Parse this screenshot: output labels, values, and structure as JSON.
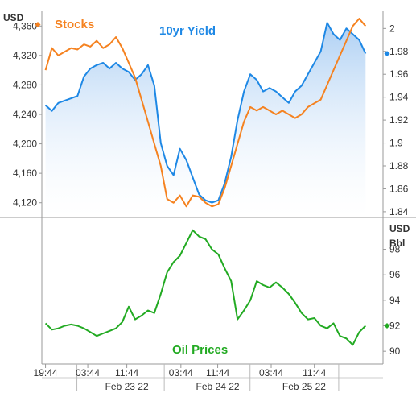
{
  "chart_data": [
    {
      "type": "line",
      "panel": "top",
      "left_axis": {
        "unit": "USD",
        "range": [
          4100,
          4380
        ],
        "ticks": [
          "4,120",
          "4,160",
          "4,200",
          "4,240",
          "4,280",
          "4,320",
          "4,360"
        ],
        "tick_values": [
          4120,
          4160,
          4200,
          4240,
          4280,
          4320,
          4360
        ]
      },
      "right_axis": {
        "range": [
          1.835,
          2.015
        ],
        "ticks": [
          "1.84",
          "1.86",
          "1.88",
          "1.9",
          "1.92",
          "1.94",
          "1.96",
          "1.98",
          "2"
        ],
        "tick_values": [
          1.84,
          1.86,
          1.88,
          1.9,
          1.92,
          1.94,
          1.96,
          1.98,
          2
        ]
      },
      "series": [
        {
          "name": "Stocks",
          "axis": "left",
          "color": "#f58220",
          "current_value": 4362,
          "x": [
            0,
            2,
            4,
            6,
            8,
            10,
            12,
            14,
            16,
            18,
            20,
            22,
            24,
            26,
            28,
            30,
            32,
            34,
            36,
            38,
            40,
            42,
            44,
            46,
            48,
            50,
            52,
            54,
            56,
            58,
            60,
            62,
            64,
            66,
            68,
            70,
            72,
            74,
            76,
            78,
            80,
            82,
            84,
            86,
            88,
            90,
            92,
            94,
            96,
            98,
            100
          ],
          "values": [
            4300,
            4330,
            4320,
            4325,
            4330,
            4328,
            4335,
            4332,
            4340,
            4330,
            4335,
            4345,
            4330,
            4310,
            4290,
            4260,
            4230,
            4200,
            4170,
            4125,
            4120,
            4130,
            4115,
            4130,
            4128,
            4120,
            4115,
            4118,
            4140,
            4170,
            4200,
            4230,
            4250,
            4245,
            4250,
            4245,
            4240,
            4245,
            4240,
            4235,
            4240,
            4250,
            4255,
            4260,
            4280,
            4300,
            4320,
            4340,
            4360,
            4370,
            4360
          ]
        },
        {
          "name": "10yr Yield",
          "axis": "right",
          "color": "#1e88e5",
          "area": true,
          "current_value": 1.978,
          "x": [
            0,
            2,
            4,
            6,
            8,
            10,
            12,
            14,
            16,
            18,
            20,
            22,
            24,
            26,
            28,
            30,
            32,
            34,
            36,
            38,
            40,
            42,
            44,
            46,
            48,
            50,
            52,
            54,
            56,
            58,
            60,
            62,
            64,
            66,
            68,
            70,
            72,
            74,
            76,
            78,
            80,
            82,
            84,
            86,
            88,
            90,
            92,
            94,
            96,
            98,
            100
          ],
          "values": [
            1.933,
            1.928,
            1.935,
            1.937,
            1.939,
            1.941,
            1.958,
            1.965,
            1.968,
            1.97,
            1.965,
            1.97,
            1.965,
            1.962,
            1.955,
            1.96,
            1.968,
            1.95,
            1.9,
            1.88,
            1.872,
            1.895,
            1.885,
            1.87,
            1.855,
            1.85,
            1.848,
            1.85,
            1.865,
            1.888,
            1.92,
            1.945,
            1.96,
            1.955,
            1.945,
            1.948,
            1.945,
            1.94,
            1.935,
            1.945,
            1.95,
            1.96,
            1.97,
            1.98,
            2.005,
            1.995,
            1.99,
            2.0,
            1.995,
            1.99,
            1.978
          ]
        }
      ]
    },
    {
      "type": "line",
      "panel": "bottom",
      "unit": "USD\nBbl",
      "unit_lines": [
        "USD",
        "Bbl"
      ],
      "right_axis": {
        "range": [
          89,
          100.5
        ],
        "ticks": [
          "90",
          "92",
          "94",
          "96",
          "98"
        ],
        "tick_values": [
          90,
          92,
          94,
          96,
          98
        ]
      },
      "series": [
        {
          "name": "Oil Prices",
          "color": "#22aa22",
          "current_value": 92,
          "x": [
            0,
            2,
            4,
            6,
            8,
            10,
            12,
            14,
            16,
            18,
            20,
            22,
            24,
            26,
            28,
            30,
            32,
            34,
            36,
            38,
            40,
            42,
            44,
            46,
            48,
            50,
            52,
            54,
            56,
            58,
            60,
            62,
            64,
            66,
            68,
            70,
            72,
            74,
            76,
            78,
            80,
            82,
            84,
            86,
            88,
            90,
            92,
            94,
            96,
            98,
            100
          ],
          "values": [
            92.2,
            91.7,
            91.8,
            92.0,
            92.1,
            92.0,
            91.8,
            91.5,
            91.2,
            91.4,
            91.6,
            91.8,
            92.3,
            93.5,
            92.5,
            92.8,
            93.2,
            93.0,
            94.5,
            96.2,
            97.0,
            97.5,
            98.5,
            99.5,
            99.0,
            98.8,
            98.0,
            97.6,
            96.5,
            95.5,
            92.5,
            93.2,
            94.0,
            95.5,
            95.2,
            95.0,
            95.4,
            95.0,
            94.5,
            93.8,
            93.0,
            92.5,
            92.6,
            92.0,
            91.8,
            92.2,
            91.2,
            91.0,
            90.5,
            91.5,
            92.0
          ]
        }
      ]
    }
  ],
  "x_axis": {
    "range": [
      -1.15,
      105.45
    ],
    "time_ticks": [
      {
        "label": "19:44",
        "x": 0
      },
      {
        "label": "03:44",
        "x": 13.2
      },
      {
        "label": "11:44",
        "x": 25.4
      },
      {
        "label": "03:44",
        "x": 42.3
      },
      {
        "label": "11:44",
        "x": 53.8
      },
      {
        "label": "03:44",
        "x": 70.5
      },
      {
        "label": "11:44",
        "x": 84.0
      }
    ],
    "date_labels": [
      {
        "label": "Feb 23 22",
        "x": 25.4
      },
      {
        "label": "Feb 24 22",
        "x": 53.8
      },
      {
        "label": "Feb 25 22",
        "x": 80.8
      }
    ],
    "day_dividers": [
      9.8,
      37.1,
      63.9,
      91.6
    ]
  },
  "colors": {
    "stocks": "#f58220",
    "yield": "#1e88e5",
    "oil": "#22aa22",
    "grid": "#888888"
  }
}
